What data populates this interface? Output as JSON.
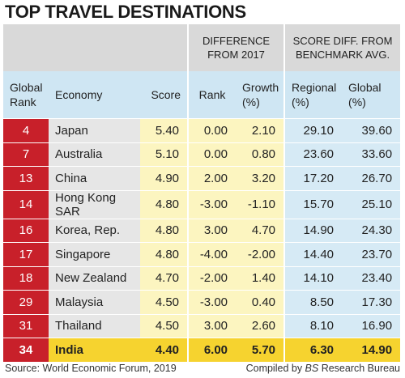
{
  "title": "TOP TRAVEL DESTINATIONS",
  "group_headers": {
    "difference": "DIFFERENCE FROM 2017",
    "score_diff": "SCORE DIFF. FROM BENCHMARK AVG."
  },
  "columns": {
    "global_rank": "Global Rank",
    "economy": "Economy",
    "score": "Score",
    "rank": "Rank",
    "growth": "Growth (%)",
    "regional": "Regional (%)",
    "global": "Global (%)"
  },
  "rows": [
    {
      "rank": "4",
      "economy": "Japan",
      "score": "5.40",
      "d_rank": "0.00",
      "growth": "2.10",
      "regional": "29.10",
      "global": "39.60"
    },
    {
      "rank": "7",
      "economy": "Australia",
      "score": "5.10",
      "d_rank": "0.00",
      "growth": "0.80",
      "regional": "23.60",
      "global": "33.60"
    },
    {
      "rank": "13",
      "economy": "China",
      "score": "4.90",
      "d_rank": "2.00",
      "growth": "3.20",
      "regional": "17.20",
      "global": "26.70"
    },
    {
      "rank": "14",
      "economy": "Hong Kong SAR",
      "score": "4.80",
      "d_rank": "-3.00",
      "growth": "-1.10",
      "regional": "15.70",
      "global": "25.10"
    },
    {
      "rank": "16",
      "economy": "Korea, Rep.",
      "score": "4.80",
      "d_rank": "3.00",
      "growth": "4.70",
      "regional": "14.90",
      "global": "24.30"
    },
    {
      "rank": "17",
      "economy": "Singapore",
      "score": "4.80",
      "d_rank": "-4.00",
      "growth": "-2.00",
      "regional": "14.40",
      "global": "23.70"
    },
    {
      "rank": "18",
      "economy": "New Zealand",
      "score": "4.70",
      "d_rank": "-2.00",
      "growth": "1.40",
      "regional": "14.10",
      "global": "23.40"
    },
    {
      "rank": "29",
      "economy": "Malaysia",
      "score": "4.50",
      "d_rank": "-3.00",
      "growth": "0.40",
      "regional": "8.50",
      "global": "17.30"
    },
    {
      "rank": "31",
      "economy": "Thailand",
      "score": "4.50",
      "d_rank": "3.00",
      "growth": "2.60",
      "regional": "8.10",
      "global": "16.90"
    },
    {
      "rank": "34",
      "economy": "India",
      "score": "4.40",
      "d_rank": "6.00",
      "growth": "5.70",
      "regional": "6.30",
      "global": "14.90"
    }
  ],
  "highlight_economy": "India",
  "colors": {
    "rank_red": "#c8202a",
    "yellow_cell": "#fcf5c0",
    "blue_cell": "#d6eaf5",
    "header_blue": "#cfe6f3",
    "highlight_yellow": "#f6d32f"
  },
  "footer": {
    "source": "Source: World Economic Forum, 2019",
    "compiled_prefix": "Compiled by ",
    "compiled_bs": "BS",
    "compiled_suffix": " Research Bureau"
  }
}
